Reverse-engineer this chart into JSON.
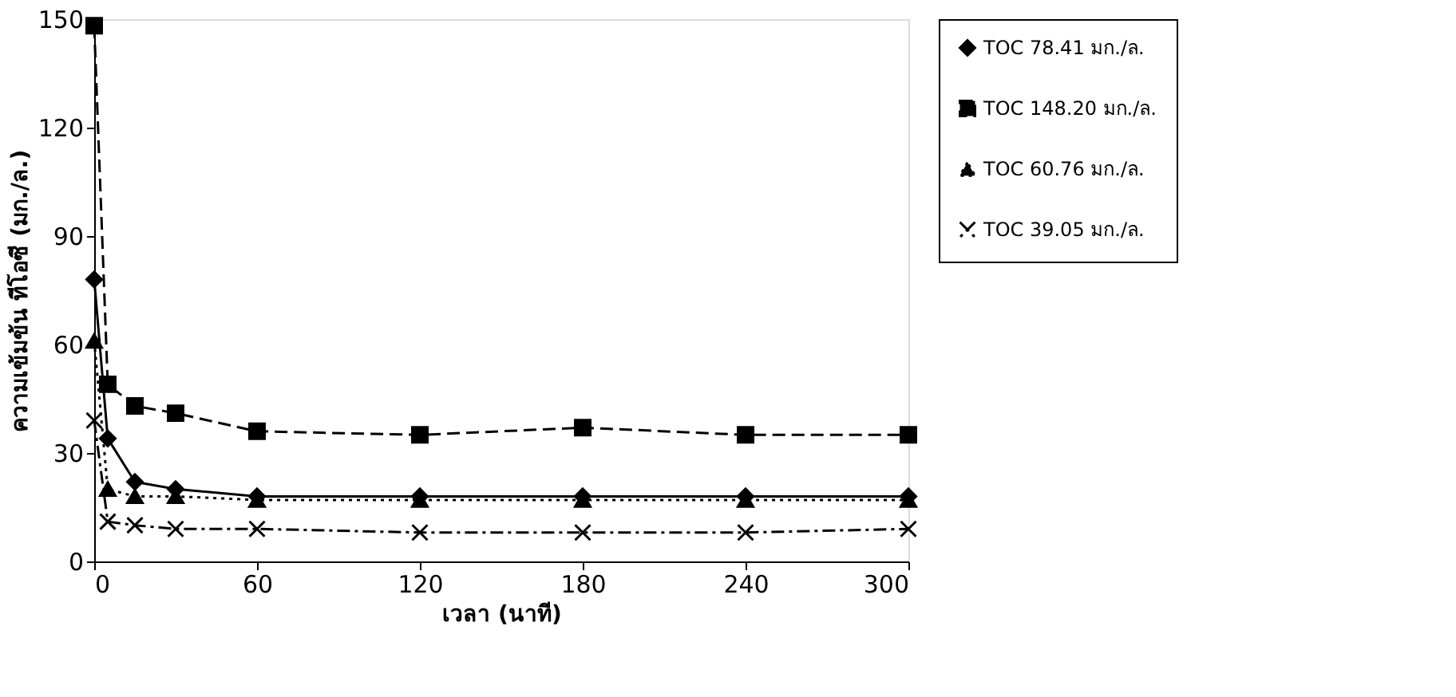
{
  "chart_data": {
    "type": "line",
    "xlabel": "เวลา (นาที)",
    "ylabel": "ความเข้มข้น ทีโอซี (มก./ล.)",
    "x": [
      0,
      5,
      15,
      30,
      60,
      120,
      180,
      240,
      300
    ],
    "series": [
      {
        "name": "TOC 78.41 มก./ล.",
        "color": "#000000",
        "marker": "diamond",
        "line_style": "solid",
        "values": [
          78,
          34,
          22,
          20,
          18,
          18,
          18,
          18,
          18
        ]
      },
      {
        "name": "TOC 148.20 มก./ล.",
        "color": "#000000",
        "marker": "square",
        "line_style": "dashed",
        "values": [
          148.2,
          49,
          43,
          41,
          36,
          35,
          37,
          35,
          35
        ]
      },
      {
        "name": "TOC 60.76 มก./ล.",
        "color": "#000000",
        "marker": "triangle",
        "line_style": "dotted",
        "values": [
          61,
          20,
          18,
          18,
          17,
          17,
          17,
          17,
          17
        ]
      },
      {
        "name": "TOC 39.05 มก./ล.",
        "color": "#000000",
        "marker": "cross",
        "line_style": "dashdot",
        "values": [
          39,
          11,
          10,
          9,
          9,
          8,
          8,
          8,
          9
        ]
      }
    ],
    "xlim": [
      0,
      300
    ],
    "xticks": [
      0,
      60,
      120,
      180,
      240,
      300
    ],
    "ylim": [
      0,
      150
    ],
    "yticks": [
      0,
      30,
      60,
      90,
      120,
      150
    ],
    "grid": false,
    "legend": "top right"
  }
}
